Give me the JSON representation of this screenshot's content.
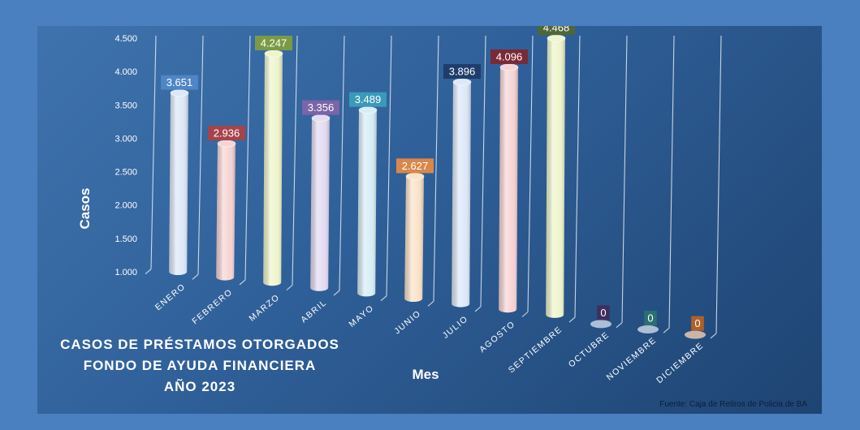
{
  "chart_data": {
    "type": "bar",
    "title_lines": [
      "CASOS DE PRÉSTAMOS OTORGADOS",
      "FONDO DE AYUDA FINANCIERA",
      "AÑO 2023"
    ],
    "xlabel": "Mes",
    "ylabel": "Casos",
    "ylim": [
      1000,
      4500
    ],
    "yticks": [
      "1.000",
      "1.500",
      "2.000",
      "2.500",
      "3.000",
      "3.500",
      "4.000",
      "4.500"
    ],
    "ytick_values": [
      1000,
      1500,
      2000,
      2500,
      3000,
      3500,
      4000,
      4500
    ],
    "categories": [
      "ENERO",
      "FEBRERO",
      "MARZO",
      "ABRIL",
      "MAYO",
      "JUNIO",
      "JULIO",
      "AGOSTO",
      "SEPTIEMBRE",
      "OCTUBRE",
      "NOVIEMBRE",
      "DICIEMBRE"
    ],
    "values": [
      3651,
      2936,
      4247,
      3356,
      3489,
      2627,
      3896,
      4096,
      4468,
      0,
      0,
      0
    ],
    "data_labels": [
      "3.651",
      "2.936",
      "4.247",
      "3.356",
      "3.489",
      "2.627",
      "3.896",
      "4.096",
      "4.468",
      "0",
      "0",
      "0"
    ],
    "bar_colors": [
      "#dde8f8",
      "#f7d4d4",
      "#eef5cc",
      "#e3dcf2",
      "#d8eef6",
      "#fbe2c8",
      "#dde8f8",
      "#f7d4d4",
      "#eef5cc",
      "#c5d2e0",
      "#c5d2e0",
      "#e8c8b0"
    ],
    "label_colors": [
      "#4f86c6",
      "#a6434b",
      "#7a9a44",
      "#7b64a8",
      "#3a9bb8",
      "#d9884a",
      "#1f3d6b",
      "#7a2a35",
      "#4f6638",
      "#3d2f5e",
      "#2a6f72",
      "#b0602a"
    ],
    "grid": true,
    "source": "Fuente: Caja de Retiros de Policia de BA"
  }
}
